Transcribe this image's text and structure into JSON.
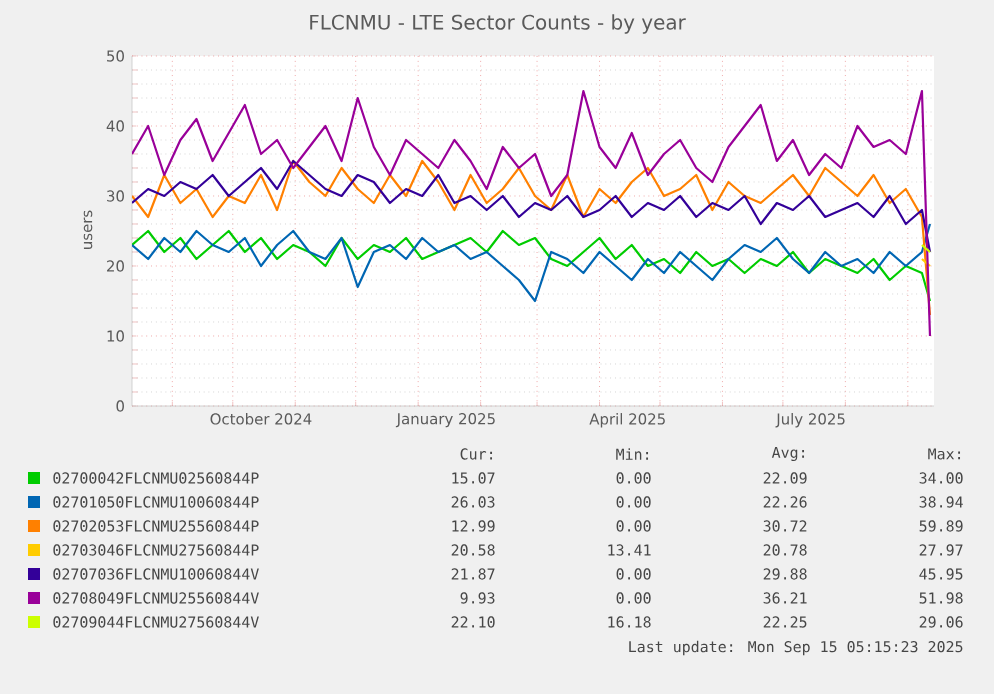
{
  "chart_data": {
    "type": "line",
    "title": "FLCNMU - LTE Sector Counts - by year",
    "ylabel": "users",
    "x": [
      "2024-08-12",
      "2024-08-20",
      "2024-08-28",
      "2024-09-05",
      "2024-09-13",
      "2024-09-21",
      "2024-09-29",
      "2024-10-07",
      "2024-10-15",
      "2024-10-23",
      "2024-10-31",
      "2024-11-08",
      "2024-11-16",
      "2024-11-24",
      "2024-12-02",
      "2024-12-10",
      "2024-12-18",
      "2024-12-26",
      "2025-01-03",
      "2025-01-11",
      "2025-01-19",
      "2025-01-27",
      "2025-02-04",
      "2025-02-12",
      "2025-02-20",
      "2025-02-28",
      "2025-03-08",
      "2025-03-16",
      "2025-03-24",
      "2025-04-01",
      "2025-04-09",
      "2025-04-17",
      "2025-04-25",
      "2025-05-03",
      "2025-05-11",
      "2025-05-19",
      "2025-05-27",
      "2025-06-04",
      "2025-06-12",
      "2025-06-20",
      "2025-06-28",
      "2025-07-06",
      "2025-07-14",
      "2025-07-22",
      "2025-07-30",
      "2025-08-07",
      "2025-08-15",
      "2025-08-23",
      "2025-08-31",
      "2025-09-08",
      "2025-09-12"
    ],
    "series": [
      {
        "name": "02700042FLCNMU02560844P",
        "color": "#00cc00",
        "values": [
          23,
          25,
          22,
          24,
          21,
          23,
          25,
          22,
          24,
          21,
          23,
          22,
          20,
          24,
          21,
          23,
          22,
          24,
          21,
          22,
          23,
          24,
          22,
          25,
          23,
          24,
          21,
          20,
          22,
          24,
          21,
          23,
          20,
          21,
          19,
          22,
          20,
          21,
          19,
          21,
          20,
          22,
          19,
          21,
          20,
          19,
          21,
          18,
          20,
          19,
          15
        ]
      },
      {
        "name": "02701050FLCNMU10060844P",
        "color": "#0066b3",
        "values": [
          23,
          21,
          24,
          22,
          25,
          23,
          22,
          24,
          20,
          23,
          25,
          22,
          21,
          24,
          17,
          22,
          23,
          21,
          24,
          22,
          23,
          21,
          22,
          20,
          18,
          15,
          22,
          21,
          19,
          22,
          20,
          18,
          21,
          19,
          22,
          20,
          18,
          21,
          23,
          22,
          24,
          21,
          19,
          22,
          20,
          21,
          19,
          22,
          20,
          22,
          26
        ]
      },
      {
        "name": "02702053FLCNMU25560844P",
        "color": "#ff8000",
        "values": [
          30,
          27,
          33,
          29,
          31,
          27,
          30,
          29,
          33,
          28,
          35,
          32,
          30,
          34,
          31,
          29,
          33,
          30,
          35,
          32,
          28,
          33,
          29,
          31,
          34,
          30,
          28,
          33,
          27,
          31,
          29,
          32,
          34,
          30,
          31,
          33,
          28,
          32,
          30,
          29,
          31,
          33,
          30,
          34,
          32,
          30,
          33,
          29,
          31,
          27,
          13
        ]
      },
      {
        "name": "02703046FLCNMU27560844P",
        "color": "#ffcc00",
        "values": [
          null,
          null,
          null,
          null,
          null,
          null,
          null,
          null,
          null,
          null,
          null,
          null,
          null,
          null,
          null,
          null,
          null,
          null,
          null,
          null,
          null,
          null,
          null,
          null,
          null,
          null,
          null,
          null,
          null,
          null,
          null,
          null,
          null,
          null,
          null,
          null,
          null,
          null,
          null,
          null,
          null,
          null,
          null,
          null,
          null,
          null,
          null,
          null,
          null,
          21,
          20
        ]
      },
      {
        "name": "02707036FLCNMU10060844V",
        "color": "#330099",
        "values": [
          29,
          31,
          30,
          32,
          31,
          33,
          30,
          32,
          34,
          31,
          35,
          33,
          31,
          30,
          33,
          32,
          29,
          31,
          30,
          33,
          29,
          30,
          28,
          30,
          27,
          29,
          28,
          30,
          27,
          28,
          30,
          27,
          29,
          28,
          30,
          27,
          29,
          28,
          30,
          26,
          29,
          28,
          30,
          27,
          28,
          29,
          27,
          30,
          26,
          28,
          22
        ]
      },
      {
        "name": "02708049FLCNMU25560844V",
        "color": "#990099",
        "values": [
          36,
          40,
          33,
          38,
          41,
          35,
          39,
          43,
          36,
          38,
          34,
          37,
          40,
          35,
          44,
          37,
          33,
          38,
          36,
          34,
          38,
          35,
          31,
          37,
          34,
          36,
          30,
          33,
          45,
          37,
          34,
          39,
          33,
          36,
          38,
          34,
          32,
          37,
          40,
          43,
          35,
          38,
          33,
          36,
          34,
          40,
          37,
          38,
          36,
          45,
          10
        ]
      },
      {
        "name": "02709044FLCNMU27560844V",
        "color": "#ccff00",
        "values": [
          null,
          null,
          null,
          null,
          null,
          null,
          null,
          null,
          null,
          null,
          null,
          null,
          null,
          null,
          null,
          null,
          null,
          null,
          null,
          null,
          null,
          null,
          null,
          null,
          null,
          null,
          null,
          null,
          null,
          null,
          null,
          null,
          null,
          null,
          null,
          null,
          null,
          null,
          null,
          null,
          null,
          null,
          null,
          null,
          null,
          null,
          null,
          null,
          null,
          23,
          22
        ]
      }
    ],
    "xlim": [
      "2024-08-12",
      "2025-09-14"
    ],
    "xticks": [
      {
        "value": "2024-09-01",
        "label": null
      },
      {
        "value": "2024-10-01",
        "label": null
      },
      {
        "value": "2024-10-15",
        "label": "October 2024"
      },
      {
        "value": "2024-11-01",
        "label": null
      },
      {
        "value": "2024-12-01",
        "label": null
      },
      {
        "value": "2025-01-01",
        "label": null
      },
      {
        "value": "2025-01-15",
        "label": "January 2025"
      },
      {
        "value": "2025-02-01",
        "label": null
      },
      {
        "value": "2025-03-01",
        "label": null
      },
      {
        "value": "2025-04-01",
        "label": null
      },
      {
        "value": "2025-04-15",
        "label": "April 2025"
      },
      {
        "value": "2025-05-01",
        "label": null
      },
      {
        "value": "2025-06-01",
        "label": null
      },
      {
        "value": "2025-07-01",
        "label": null
      },
      {
        "value": "2025-07-15",
        "label": "July 2025"
      },
      {
        "value": "2025-08-01",
        "label": null
      },
      {
        "value": "2025-09-01",
        "label": null
      }
    ],
    "ylim": [
      0,
      50
    ],
    "yticks": [
      0,
      10,
      20,
      30,
      40,
      50
    ],
    "grid": true,
    "legend": "bottom",
    "marker": "none",
    "line_style": "solid",
    "annotations": [
      "Cur:",
      "Min:",
      "Avg:",
      "Max:",
      "15.07",
      "0.00",
      "22.09",
      "34.00",
      "26.03",
      "0.00",
      "22.26",
      "38.94",
      "12.99",
      "0.00",
      "30.72",
      "59.89",
      "20.58",
      "13.41",
      "20.78",
      "27.97",
      "21.87",
      "0.00",
      "29.88",
      "45.95",
      "9.93",
      "0.00",
      "36.21",
      "51.98",
      "22.10",
      "16.18",
      "22.25",
      "29.06",
      "Last update: Mon Sep 15 05:15:23 2025"
    ]
  }
}
